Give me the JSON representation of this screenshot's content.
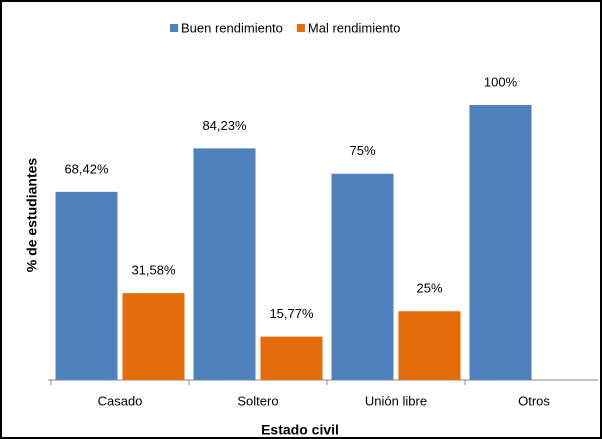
{
  "chart_data": {
    "type": "bar",
    "x_label": "Estado civil",
    "y_label": "% de estudiantes",
    "categories": [
      "Casado",
      "Soltero",
      "Unión libre",
      "Otros"
    ],
    "series": [
      {
        "name": "Buen rendimiento",
        "color": "#4f81bd",
        "values": [
          68.42,
          84.23,
          75,
          100
        ],
        "value_labels": [
          "68,42%",
          "84,23%",
          "75%",
          "100%"
        ]
      },
      {
        "name": "Mal rendimiento",
        "color": "#e46c0a",
        "values": [
          31.58,
          15.77,
          25,
          null
        ],
        "value_labels": [
          "31,58%",
          "15,77%",
          "25%",
          null
        ]
      }
    ],
    "ylim": [
      0,
      120
    ],
    "legend": "top"
  }
}
